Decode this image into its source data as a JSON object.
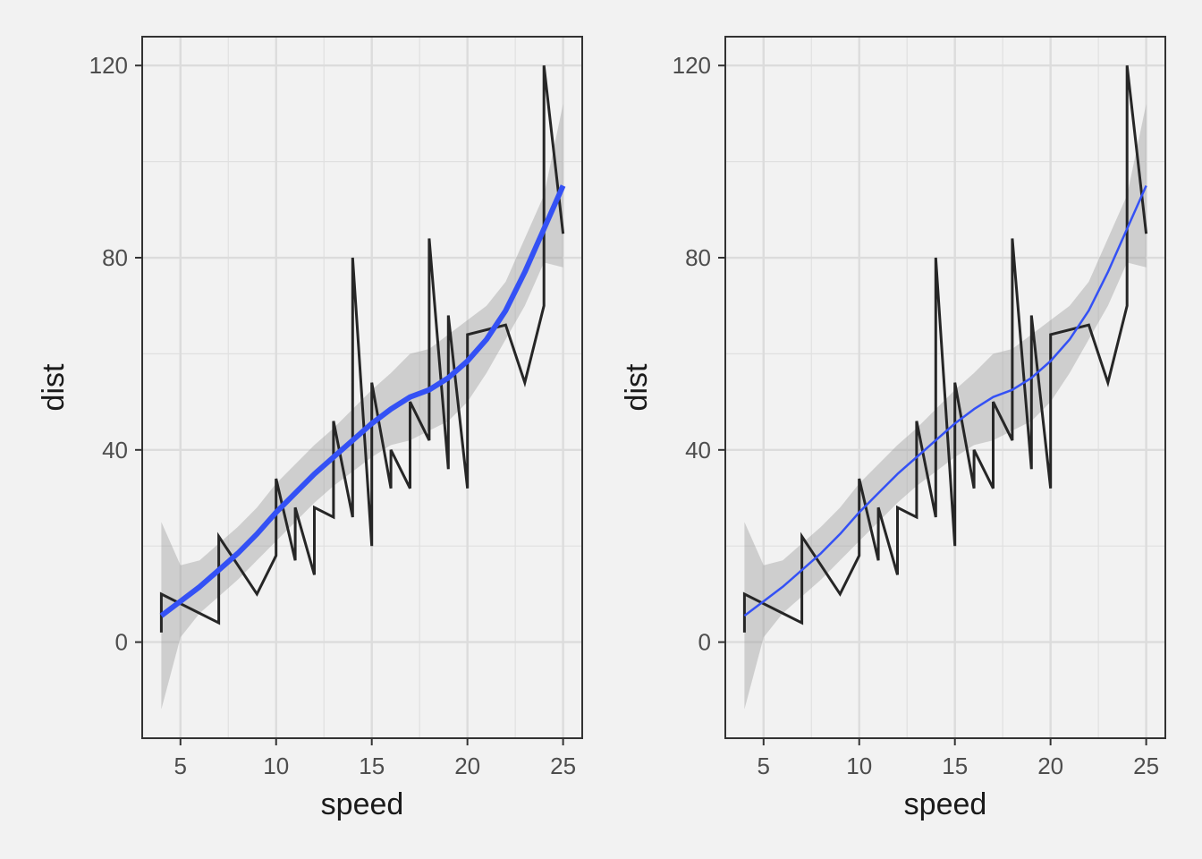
{
  "chart_data": [
    {
      "type": "line",
      "xlabel": "speed",
      "ylabel": "dist",
      "xlim": [
        3,
        26
      ],
      "ylim": [
        -20,
        126
      ],
      "xticks": [
        5,
        10,
        15,
        20,
        25
      ],
      "yticks": [
        0,
        40,
        80,
        120
      ],
      "xtick_labels": [
        "5",
        "10",
        "15",
        "20",
        "25"
      ],
      "ytick_labels": [
        "0",
        "40",
        "80",
        "120"
      ],
      "grid": true,
      "series": [
        {
          "kind": "path",
          "color": "#262626",
          "x": [
            4,
            4,
            7,
            7,
            8,
            9,
            10,
            10,
            10,
            11,
            11,
            12,
            12,
            12,
            12,
            13,
            13,
            13,
            13,
            14,
            14,
            14,
            14,
            15,
            15,
            15,
            16,
            16,
            17,
            17,
            17,
            18,
            18,
            18,
            18,
            19,
            19,
            19,
            20,
            20,
            20,
            20,
            20,
            22,
            23,
            24,
            24,
            24,
            24,
            25
          ],
          "y": [
            2,
            10,
            4,
            22,
            16,
            10,
            18,
            26,
            34,
            17,
            28,
            14,
            20,
            24,
            28,
            26,
            34,
            34,
            46,
            26,
            36,
            60,
            80,
            20,
            26,
            54,
            32,
            40,
            32,
            40,
            50,
            42,
            56,
            76,
            84,
            36,
            46,
            68,
            32,
            48,
            52,
            56,
            64,
            66,
            54,
            70,
            92,
            93,
            120,
            85
          ]
        },
        {
          "kind": "smooth",
          "color": "#3451f5",
          "x": [
            4,
            5,
            6,
            7,
            8,
            9,
            10,
            11,
            12,
            13,
            14,
            15,
            16,
            17,
            18,
            19,
            20,
            21,
            22,
            23,
            24,
            25
          ],
          "y": [
            5.5,
            8.5,
            11.5,
            15,
            18.5,
            22.5,
            27,
            31,
            35,
            38.5,
            42,
            45.5,
            48.5,
            51,
            52.5,
            55,
            58.5,
            63,
            69,
            77,
            86,
            95
          ],
          "lower": [
            -14,
            1,
            6,
            9.5,
            13,
            17,
            21,
            25,
            29,
            32.5,
            35.5,
            38.5,
            41,
            42,
            44,
            46,
            50,
            56,
            63,
            70,
            79,
            78
          ],
          "upper": [
            25,
            16,
            17,
            20.5,
            24,
            28,
            33,
            37,
            41,
            44.5,
            48.5,
            52.5,
            56,
            60,
            61,
            64,
            67,
            70,
            75,
            84,
            93,
            112
          ]
        }
      ]
    },
    {
      "type": "line",
      "xlabel": "speed",
      "ylabel": "dist",
      "xlim": [
        3,
        26
      ],
      "ylim": [
        -20,
        126
      ],
      "xticks": [
        5,
        10,
        15,
        20,
        25
      ],
      "yticks": [
        0,
        40,
        80,
        120
      ],
      "xtick_labels": [
        "5",
        "10",
        "15",
        "20",
        "25"
      ],
      "ytick_labels": [
        "0",
        "40",
        "80",
        "120"
      ],
      "grid": true,
      "series": [
        {
          "kind": "path",
          "color": "#262626",
          "x": [
            4,
            4,
            7,
            7,
            8,
            9,
            10,
            10,
            10,
            11,
            11,
            12,
            12,
            12,
            12,
            13,
            13,
            13,
            13,
            14,
            14,
            14,
            14,
            15,
            15,
            15,
            16,
            16,
            17,
            17,
            17,
            18,
            18,
            18,
            18,
            19,
            19,
            19,
            20,
            20,
            20,
            20,
            20,
            22,
            23,
            24,
            24,
            24,
            24,
            25
          ],
          "y": [
            2,
            10,
            4,
            22,
            16,
            10,
            18,
            26,
            34,
            17,
            28,
            14,
            20,
            24,
            28,
            26,
            34,
            34,
            46,
            26,
            36,
            60,
            80,
            20,
            26,
            54,
            32,
            40,
            32,
            40,
            50,
            42,
            56,
            76,
            84,
            36,
            46,
            68,
            32,
            48,
            52,
            56,
            64,
            66,
            54,
            70,
            92,
            93,
            120,
            85
          ]
        },
        {
          "kind": "smooth",
          "color": "#3451f5",
          "x": [
            4,
            5,
            6,
            7,
            8,
            9,
            10,
            11,
            12,
            13,
            14,
            15,
            16,
            17,
            18,
            19,
            20,
            21,
            22,
            23,
            24,
            25
          ],
          "y": [
            5.5,
            8.5,
            11.5,
            15,
            18.5,
            22.5,
            27,
            31,
            35,
            38.5,
            42,
            45.5,
            48.5,
            51,
            52.5,
            55,
            58.5,
            63,
            69,
            77,
            86,
            95
          ],
          "lower": [
            -14,
            1,
            6,
            9.5,
            13,
            17,
            21,
            25,
            29,
            32.5,
            35.5,
            38.5,
            41,
            42,
            44,
            46,
            50,
            56,
            63,
            70,
            79,
            78
          ],
          "upper": [
            25,
            16,
            17,
            20.5,
            24,
            28,
            33,
            37,
            41,
            44.5,
            48.5,
            52.5,
            56,
            60,
            61,
            64,
            67,
            70,
            75,
            84,
            93,
            112
          ]
        }
      ]
    }
  ]
}
